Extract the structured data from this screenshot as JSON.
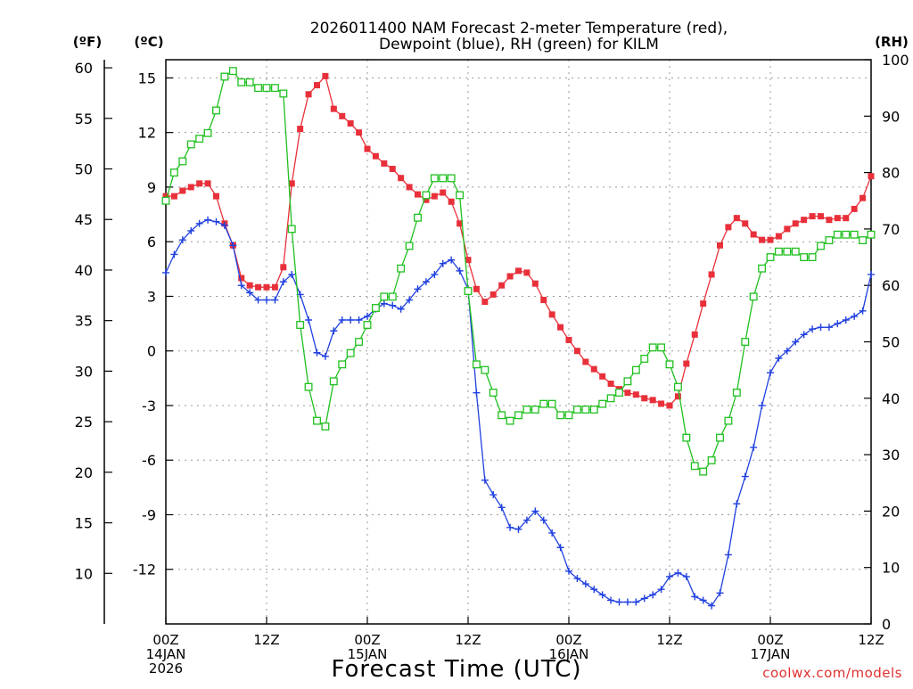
{
  "chart_data": {
    "type": "line",
    "title": "2026011400 NAM Forecast 2-meter Temperature (red),",
    "subtitle": "Dewpoint (blue), RH (green) for KILM",
    "xlabel": "Forecast Time (UTC)",
    "watermark": "coolwx.com/models",
    "axes": {
      "left_f": {
        "label": "(ºF)",
        "ticks": [
          10,
          15,
          20,
          25,
          30,
          35,
          40,
          45,
          50,
          55,
          60
        ]
      },
      "left_c": {
        "label": "(ºC)",
        "range": [
          -15,
          16
        ],
        "ticks": [
          -12,
          -9,
          -6,
          -3,
          0,
          3,
          6,
          9,
          12,
          15
        ]
      },
      "right_rh": {
        "label": "(RH)",
        "range": [
          0,
          100
        ],
        "ticks": [
          0,
          10,
          20,
          30,
          40,
          50,
          60,
          70,
          80,
          90,
          100
        ]
      },
      "x": {
        "range": [
          0,
          84
        ],
        "ticks": [
          {
            "hour": 0,
            "lines": [
              "00Z",
              "14JAN",
              "2026"
            ]
          },
          {
            "hour": 12,
            "lines": [
              "12Z"
            ]
          },
          {
            "hour": 24,
            "lines": [
              "00Z",
              "15JAN"
            ]
          },
          {
            "hour": 36,
            "lines": [
              "12Z"
            ]
          },
          {
            "hour": 48,
            "lines": [
              "00Z",
              "16JAN"
            ]
          },
          {
            "hour": 60,
            "lines": [
              "12Z"
            ]
          },
          {
            "hour": 72,
            "lines": [
              "00Z",
              "17JAN"
            ]
          },
          {
            "hour": 84,
            "lines": [
              "12Z"
            ]
          }
        ]
      }
    },
    "grid": true,
    "colors": {
      "temperature": "#e8303a",
      "dewpoint": "#2040e0",
      "rh": "#20c020"
    },
    "series": [
      {
        "key": "temperature",
        "axis": "c",
        "marker": "filled-square",
        "points": [
          [
            0,
            8.5
          ],
          [
            1,
            8.5
          ],
          [
            2,
            8.8
          ],
          [
            3,
            9.0
          ],
          [
            4,
            9.2
          ],
          [
            5,
            9.2
          ],
          [
            6,
            8.5
          ],
          [
            7,
            7.0
          ],
          [
            8,
            5.8
          ],
          [
            9,
            4.0
          ],
          [
            10,
            3.6
          ],
          [
            11,
            3.5
          ],
          [
            12,
            3.5
          ],
          [
            13,
            3.5
          ],
          [
            14,
            4.6
          ],
          [
            15,
            9.2
          ],
          [
            16,
            12.2
          ],
          [
            17,
            14.1
          ],
          [
            18,
            14.6
          ],
          [
            19,
            15.1
          ],
          [
            20,
            13.3
          ],
          [
            21,
            12.9
          ],
          [
            22,
            12.5
          ],
          [
            23,
            12.0
          ],
          [
            24,
            11.1
          ],
          [
            25,
            10.7
          ],
          [
            26,
            10.3
          ],
          [
            27,
            10.0
          ],
          [
            28,
            9.5
          ],
          [
            29,
            9.0
          ],
          [
            30,
            8.6
          ],
          [
            31,
            8.3
          ],
          [
            32,
            8.5
          ],
          [
            33,
            8.7
          ],
          [
            34,
            8.2
          ],
          [
            35,
            7.0
          ],
          [
            36,
            5.0
          ],
          [
            37,
            3.4
          ],
          [
            38,
            2.7
          ],
          [
            39,
            3.1
          ],
          [
            40,
            3.6
          ],
          [
            41,
            4.1
          ],
          [
            42,
            4.4
          ],
          [
            43,
            4.3
          ],
          [
            44,
            3.7
          ],
          [
            45,
            2.8
          ],
          [
            46,
            2.0
          ],
          [
            47,
            1.3
          ],
          [
            48,
            0.6
          ],
          [
            49,
            0.0
          ],
          [
            50,
            -0.6
          ],
          [
            51,
            -1.0
          ],
          [
            52,
            -1.4
          ],
          [
            53,
            -1.8
          ],
          [
            54,
            -2.1
          ],
          [
            55,
            -2.3
          ],
          [
            56,
            -2.4
          ],
          [
            57,
            -2.6
          ],
          [
            58,
            -2.7
          ],
          [
            59,
            -2.9
          ],
          [
            60,
            -3.0
          ],
          [
            61,
            -2.5
          ],
          [
            62,
            -0.7
          ],
          [
            63,
            0.9
          ],
          [
            64,
            2.6
          ],
          [
            65,
            4.2
          ],
          [
            66,
            5.8
          ],
          [
            67,
            6.8
          ],
          [
            68,
            7.3
          ],
          [
            69,
            7.0
          ],
          [
            70,
            6.4
          ],
          [
            71,
            6.1
          ],
          [
            72,
            6.1
          ],
          [
            73,
            6.3
          ],
          [
            74,
            6.7
          ],
          [
            75,
            7.0
          ],
          [
            76,
            7.2
          ],
          [
            77,
            7.4
          ],
          [
            78,
            7.4
          ],
          [
            79,
            7.2
          ],
          [
            80,
            7.3
          ],
          [
            81,
            7.3
          ],
          [
            82,
            7.8
          ],
          [
            83,
            8.4
          ],
          [
            84,
            9.6
          ]
        ]
      },
      {
        "key": "dewpoint",
        "axis": "c",
        "marker": "plus",
        "points": [
          [
            0,
            4.3
          ],
          [
            1,
            5.3
          ],
          [
            2,
            6.1
          ],
          [
            3,
            6.6
          ],
          [
            4,
            7.0
          ],
          [
            5,
            7.2
          ],
          [
            6,
            7.1
          ],
          [
            7,
            6.9
          ],
          [
            8,
            5.8
          ],
          [
            9,
            3.6
          ],
          [
            10,
            3.2
          ],
          [
            11,
            2.8
          ],
          [
            12,
            2.8
          ],
          [
            13,
            2.8
          ],
          [
            14,
            3.8
          ],
          [
            15,
            4.2
          ],
          [
            16,
            3.1
          ],
          [
            17,
            1.7
          ],
          [
            18,
            -0.1
          ],
          [
            19,
            -0.3
          ],
          [
            20,
            1.1
          ],
          [
            21,
            1.7
          ],
          [
            22,
            1.7
          ],
          [
            23,
            1.7
          ],
          [
            24,
            1.9
          ],
          [
            25,
            2.3
          ],
          [
            26,
            2.6
          ],
          [
            27,
            2.5
          ],
          [
            28,
            2.3
          ],
          [
            29,
            2.8
          ],
          [
            30,
            3.4
          ],
          [
            31,
            3.8
          ],
          [
            32,
            4.2
          ],
          [
            33,
            4.8
          ],
          [
            34,
            5.0
          ],
          [
            35,
            4.4
          ],
          [
            36,
            3.4
          ],
          [
            37,
            -2.3
          ],
          [
            38,
            -7.1
          ],
          [
            39,
            -7.9
          ],
          [
            40,
            -8.6
          ],
          [
            41,
            -9.7
          ],
          [
            42,
            -9.8
          ],
          [
            43,
            -9.3
          ],
          [
            44,
            -8.8
          ],
          [
            45,
            -9.3
          ],
          [
            46,
            -10.0
          ],
          [
            47,
            -10.8
          ],
          [
            48,
            -12.1
          ],
          [
            49,
            -12.5
          ],
          [
            50,
            -12.8
          ],
          [
            51,
            -13.1
          ],
          [
            52,
            -13.4
          ],
          [
            53,
            -13.7
          ],
          [
            54,
            -13.8
          ],
          [
            55,
            -13.8
          ],
          [
            56,
            -13.8
          ],
          [
            57,
            -13.6
          ],
          [
            58,
            -13.4
          ],
          [
            59,
            -13.1
          ],
          [
            60,
            -12.4
          ],
          [
            61,
            -12.2
          ],
          [
            62,
            -12.4
          ],
          [
            63,
            -13.5
          ],
          [
            64,
            -13.7
          ],
          [
            65,
            -14.0
          ],
          [
            66,
            -13.3
          ],
          [
            67,
            -11.2
          ],
          [
            68,
            -8.4
          ],
          [
            69,
            -6.9
          ],
          [
            70,
            -5.3
          ],
          [
            71,
            -3.0
          ],
          [
            72,
            -1.2
          ],
          [
            73,
            -0.4
          ],
          [
            74,
            0.0
          ],
          [
            75,
            0.5
          ],
          [
            76,
            0.9
          ],
          [
            77,
            1.2
          ],
          [
            78,
            1.3
          ],
          [
            79,
            1.3
          ],
          [
            80,
            1.5
          ],
          [
            81,
            1.7
          ],
          [
            82,
            1.9
          ],
          [
            83,
            2.2
          ],
          [
            84,
            4.2
          ]
        ]
      },
      {
        "key": "rh",
        "axis": "rh",
        "marker": "open-square",
        "points": [
          [
            0,
            75
          ],
          [
            1,
            80
          ],
          [
            2,
            82
          ],
          [
            3,
            85
          ],
          [
            4,
            86
          ],
          [
            5,
            87
          ],
          [
            6,
            91
          ],
          [
            7,
            97
          ],
          [
            8,
            98
          ],
          [
            9,
            96
          ],
          [
            10,
            96
          ],
          [
            11,
            95
          ],
          [
            12,
            95
          ],
          [
            13,
            95
          ],
          [
            14,
            94
          ],
          [
            15,
            70
          ],
          [
            16,
            53
          ],
          [
            17,
            42
          ],
          [
            18,
            36
          ],
          [
            19,
            35
          ],
          [
            20,
            43
          ],
          [
            21,
            46
          ],
          [
            22,
            48
          ],
          [
            23,
            50
          ],
          [
            24,
            53
          ],
          [
            25,
            56
          ],
          [
            26,
            58
          ],
          [
            27,
            58
          ],
          [
            28,
            63
          ],
          [
            29,
            67
          ],
          [
            30,
            72
          ],
          [
            31,
            76
          ],
          [
            32,
            79
          ],
          [
            33,
            79
          ],
          [
            34,
            79
          ],
          [
            35,
            76
          ],
          [
            36,
            59
          ],
          [
            37,
            46
          ],
          [
            38,
            45
          ],
          [
            39,
            41
          ],
          [
            40,
            37
          ],
          [
            41,
            36
          ],
          [
            42,
            37
          ],
          [
            43,
            38
          ],
          [
            44,
            38
          ],
          [
            45,
            39
          ],
          [
            46,
            39
          ],
          [
            47,
            37
          ],
          [
            48,
            37
          ],
          [
            49,
            38
          ],
          [
            50,
            38
          ],
          [
            51,
            38
          ],
          [
            52,
            39
          ],
          [
            53,
            40
          ],
          [
            54,
            41
          ],
          [
            55,
            43
          ],
          [
            56,
            45
          ],
          [
            57,
            47
          ],
          [
            58,
            49
          ],
          [
            59,
            49
          ],
          [
            60,
            46
          ],
          [
            61,
            42
          ],
          [
            62,
            33
          ],
          [
            63,
            28
          ],
          [
            64,
            27
          ],
          [
            65,
            29
          ],
          [
            66,
            33
          ],
          [
            67,
            36
          ],
          [
            68,
            41
          ],
          [
            69,
            50
          ],
          [
            70,
            58
          ],
          [
            71,
            63
          ],
          [
            72,
            65
          ],
          [
            73,
            66
          ],
          [
            74,
            66
          ],
          [
            75,
            66
          ],
          [
            76,
            65
          ],
          [
            77,
            65
          ],
          [
            78,
            67
          ],
          [
            79,
            68
          ],
          [
            80,
            69
          ],
          [
            81,
            69
          ],
          [
            82,
            69
          ],
          [
            83,
            68
          ],
          [
            84,
            69
          ]
        ]
      }
    ]
  }
}
